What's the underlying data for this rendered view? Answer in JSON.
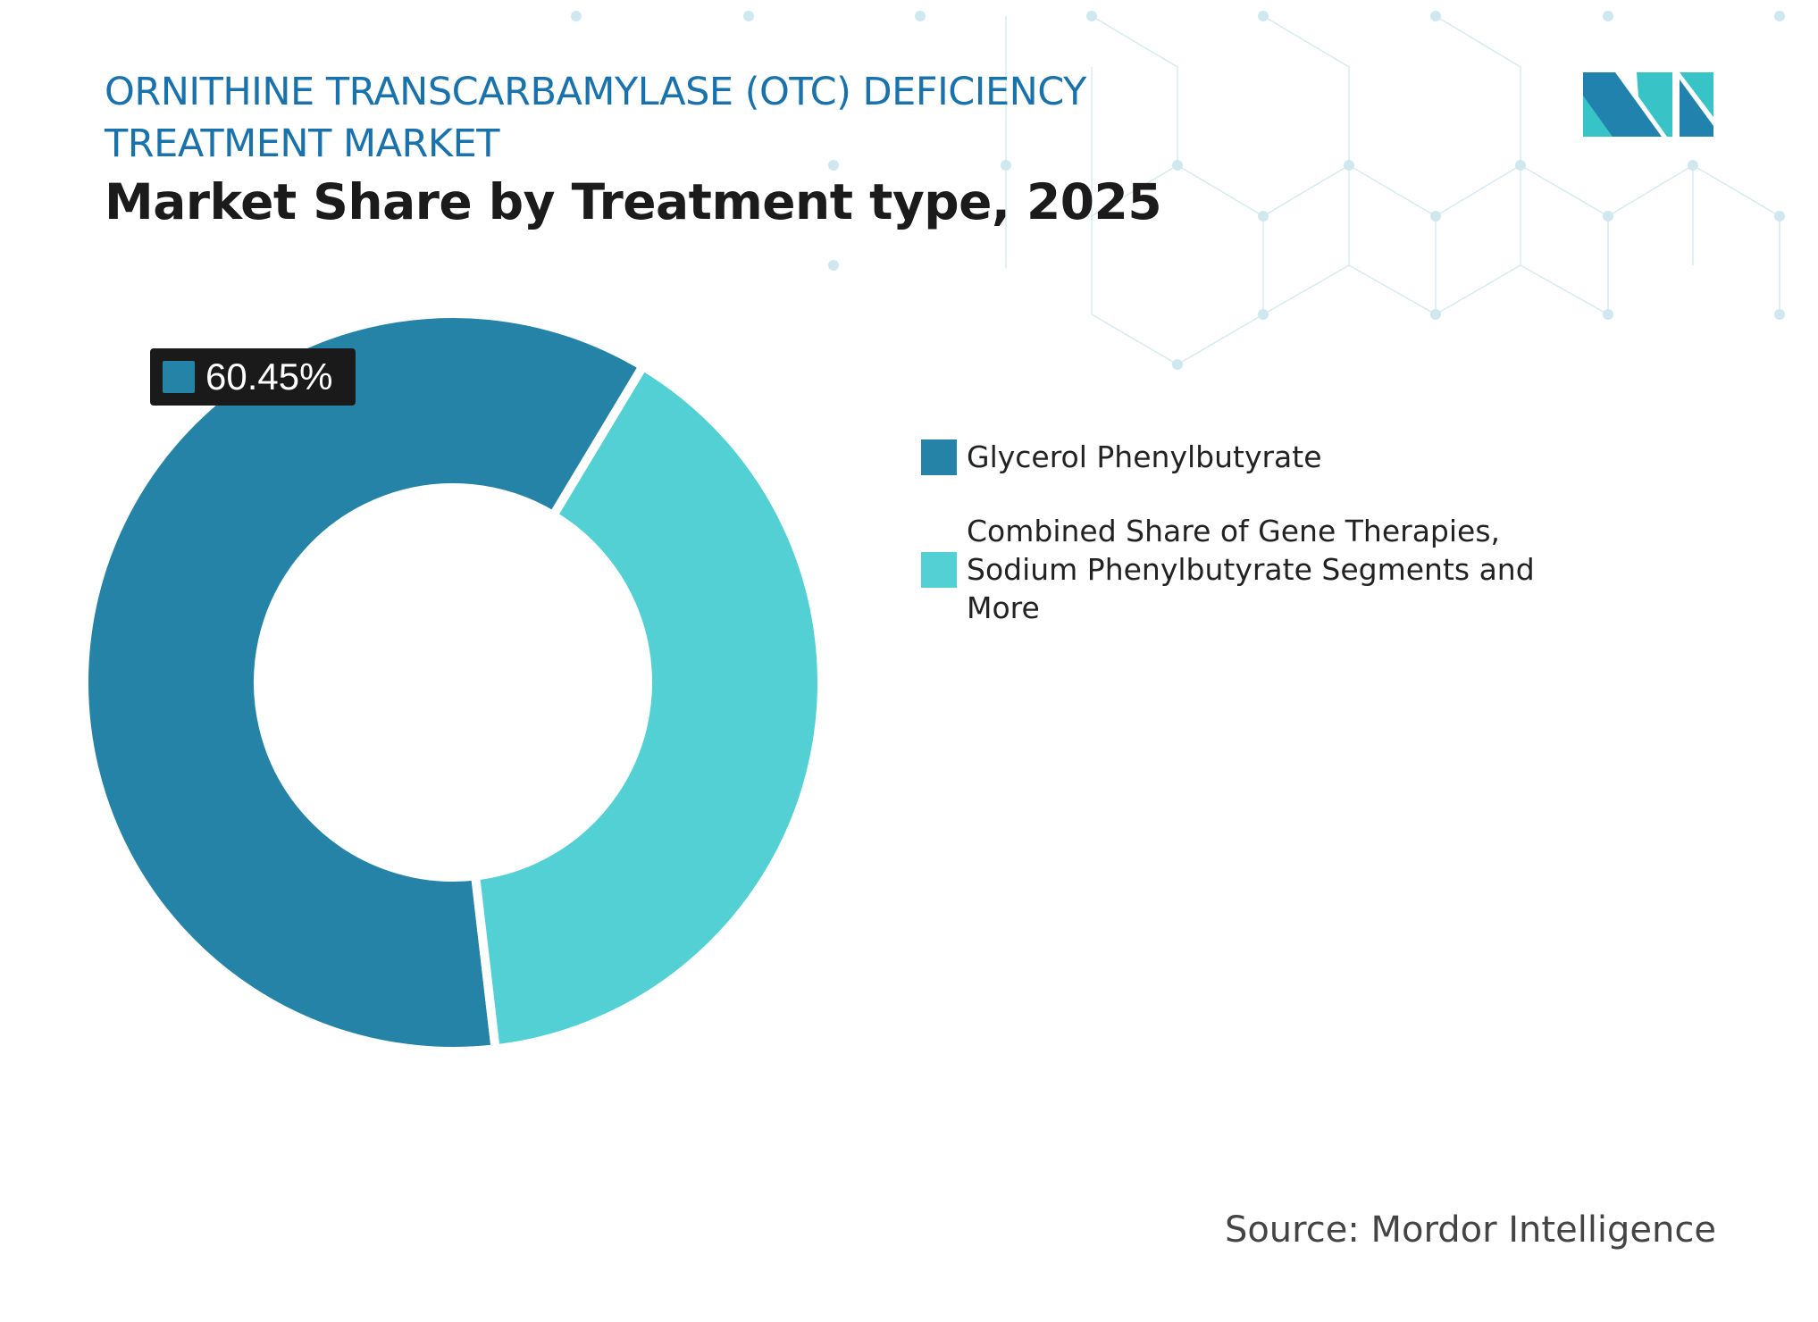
{
  "header": {
    "title": "ORNITHINE TRANSCARBAMYLASE (OTC) DEFICIENCY TREATMENT MARKET",
    "subtitle": "Market Share by Treatment type, 2025"
  },
  "logo": {
    "brand_colors": [
      "#2183ad",
      "#38c3c6"
    ]
  },
  "chart_data": {
    "type": "pie",
    "style": "donut",
    "title": "Market Share by Treatment type, 2025",
    "categories": [
      "Glycerol Phenylbutyrate",
      "Combined Share of Gene Therapies, Sodium Phenylbutyrate Segments and More"
    ],
    "values": [
      60.45,
      39.55
    ],
    "colors": [
      "#2683a8",
      "#52d0d3"
    ],
    "data_labels": [
      {
        "category": "Glycerol Phenylbutyrate",
        "text": "60.45%"
      }
    ],
    "legend": "right"
  },
  "source": "Source: Mordor Intelligence"
}
